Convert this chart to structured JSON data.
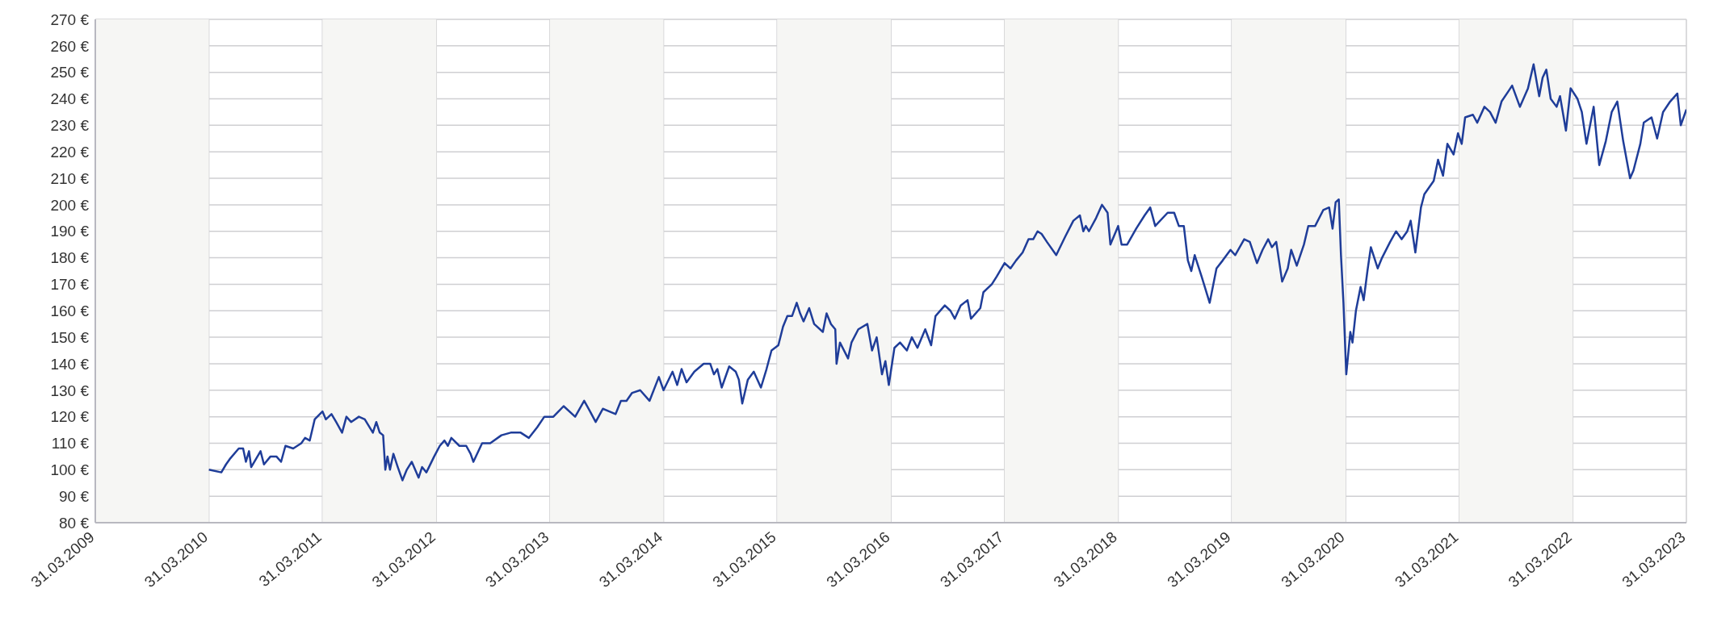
{
  "chart_data": {
    "type": "line",
    "xlim": [
      "2009-03-31",
      "2023-03-31"
    ],
    "xticks": [
      {
        "value": "2009-03-31",
        "label": "31.03.2009"
      },
      {
        "value": "2010-03-31",
        "label": "31.03.2010"
      },
      {
        "value": "2011-03-31",
        "label": "31.03.2011"
      },
      {
        "value": "2012-03-31",
        "label": "31.03.2012"
      },
      {
        "value": "2013-03-31",
        "label": "31.03.2013"
      },
      {
        "value": "2014-03-31",
        "label": "31.03.2014"
      },
      {
        "value": "2015-03-31",
        "label": "31.03.2015"
      },
      {
        "value": "2016-03-31",
        "label": "31.03.2016"
      },
      {
        "value": "2017-03-31",
        "label": "31.03.2017"
      },
      {
        "value": "2018-03-31",
        "label": "31.03.2018"
      },
      {
        "value": "2019-03-31",
        "label": "31.03.2019"
      },
      {
        "value": "2020-03-31",
        "label": "31.03.2020"
      },
      {
        "value": "2021-03-31",
        "label": "31.03.2021"
      },
      {
        "value": "2022-03-31",
        "label": "31.03.2022"
      },
      {
        "value": "2023-03-31",
        "label": "31.03.2023"
      }
    ],
    "ylim": [
      80,
      270
    ],
    "yticks": [
      {
        "value": 80,
        "label": "80 €"
      },
      {
        "value": 90,
        "label": "90 €"
      },
      {
        "value": 100,
        "label": "100 €"
      },
      {
        "value": 110,
        "label": "110 €"
      },
      {
        "value": 120,
        "label": "120 €"
      },
      {
        "value": 130,
        "label": "130 €"
      },
      {
        "value": 140,
        "label": "140 €"
      },
      {
        "value": 150,
        "label": "150 €"
      },
      {
        "value": 160,
        "label": "160 €"
      },
      {
        "value": 170,
        "label": "170 €"
      },
      {
        "value": 180,
        "label": "180 €"
      },
      {
        "value": 190,
        "label": "190 €"
      },
      {
        "value": 200,
        "label": "200 €"
      },
      {
        "value": 210,
        "label": "210 €"
      },
      {
        "value": 220,
        "label": "220 €"
      },
      {
        "value": 230,
        "label": "230 €"
      },
      {
        "value": 240,
        "label": "240 €"
      },
      {
        "value": 250,
        "label": "250 €"
      },
      {
        "value": 260,
        "label": "260 €"
      },
      {
        "value": 270,
        "label": "270 €"
      }
    ],
    "grid": true,
    "legend": false,
    "bands": [
      {
        "axis": "x",
        "from": "2009-03-31",
        "to": "2010-03-31",
        "color": "#f6f6f4"
      },
      {
        "axis": "x",
        "from": "2011-03-31",
        "to": "2012-03-31",
        "color": "#f6f6f4"
      },
      {
        "axis": "x",
        "from": "2013-03-31",
        "to": "2014-03-31",
        "color": "#f6f6f4"
      },
      {
        "axis": "x",
        "from": "2015-03-31",
        "to": "2016-03-31",
        "color": "#f6f6f4"
      },
      {
        "axis": "x",
        "from": "2017-03-31",
        "to": "2018-03-31",
        "color": "#f6f6f4"
      },
      {
        "axis": "x",
        "from": "2019-03-31",
        "to": "2020-03-31",
        "color": "#f6f6f4"
      },
      {
        "axis": "x",
        "from": "2021-03-31",
        "to": "2022-03-31",
        "color": "#f6f6f4"
      }
    ],
    "series": [
      {
        "color": "#1f3d99",
        "line_style": "solid",
        "x": [
          "2010-03-31",
          "2010-05-10",
          "2010-05-25",
          "2010-06-06",
          "2010-07-05",
          "2010-07-19",
          "2010-07-28",
          "2010-08-07",
          "2010-08-14",
          "2010-09-13",
          "2010-09-24",
          "2010-10-15",
          "2010-11-03",
          "2010-11-18",
          "2010-12-02",
          "2010-12-27",
          "2011-01-22",
          "2011-02-03",
          "2011-02-18",
          "2011-03-06",
          "2011-03-31",
          "2011-04-11",
          "2011-04-29",
          "2011-05-14",
          "2011-06-02",
          "2011-06-16",
          "2011-07-01",
          "2011-07-26",
          "2011-08-14",
          "2011-09-09",
          "2011-09-20",
          "2011-10-01",
          "2011-10-12",
          "2011-10-19",
          "2011-10-26",
          "2011-11-03",
          "2011-11-14",
          "2011-11-28",
          "2011-12-13",
          "2011-12-27",
          "2012-01-12",
          "2012-02-03",
          "2012-02-14",
          "2012-02-28",
          "2012-03-24",
          "2012-04-11",
          "2012-04-26",
          "2012-05-07",
          "2012-05-18",
          "2012-06-13",
          "2012-07-05",
          "2012-07-19",
          "2012-07-28",
          "2012-08-25",
          "2012-09-20",
          "2012-10-26",
          "2012-11-25",
          "2012-12-27",
          "2013-01-22",
          "2013-02-18",
          "2013-03-13",
          "2013-04-11",
          "2013-05-14",
          "2013-06-20",
          "2013-07-19",
          "2013-08-07",
          "2013-08-25",
          "2013-09-17",
          "2013-10-08",
          "2013-10-28",
          "2013-11-14",
          "2013-12-02",
          "2013-12-20",
          "2014-01-15",
          "2014-02-14",
          "2014-03-16",
          "2014-03-31",
          "2014-04-29",
          "2014-05-14",
          "2014-05-28",
          "2014-06-13",
          "2014-07-08",
          "2014-08-07",
          "2014-08-28",
          "2014-09-09",
          "2014-09-20",
          "2014-10-04",
          "2014-10-28",
          "2014-11-18",
          "2014-11-28",
          "2014-12-09",
          "2014-12-27",
          "2015-01-15",
          "2015-02-07",
          "2015-02-25",
          "2015-03-13",
          "2015-04-04",
          "2015-04-19",
          "2015-05-03",
          "2015-05-18",
          "2015-06-02",
          "2015-06-13",
          "2015-06-24",
          "2015-07-12",
          "2015-07-28",
          "2015-08-25",
          "2015-09-06",
          "2015-09-20",
          "2015-10-04",
          "2015-10-08",
          "2015-10-19",
          "2015-11-14",
          "2015-11-25",
          "2015-12-17",
          "2016-01-15",
          "2016-01-30",
          "2016-02-14",
          "2016-03-02",
          "2016-03-13",
          "2016-03-24",
          "2016-04-11",
          "2016-04-29",
          "2016-05-21",
          "2016-06-06",
          "2016-06-24",
          "2016-07-19",
          "2016-08-07",
          "2016-08-21",
          "2016-09-20",
          "2016-10-08",
          "2016-10-22",
          "2016-11-10",
          "2016-12-02",
          "2016-12-13",
          "2017-01-12",
          "2017-01-22",
          "2017-02-18",
          "2017-03-06",
          "2017-03-31",
          "2017-04-19",
          "2017-05-07",
          "2017-05-28",
          "2017-06-16",
          "2017-07-01",
          "2017-07-15",
          "2017-07-28",
          "2017-08-14",
          "2017-09-13",
          "2017-10-12",
          "2017-11-07",
          "2017-11-28",
          "2017-12-09",
          "2017-12-17",
          "2017-12-27",
          "2018-01-19",
          "2018-02-07",
          "2018-02-25",
          "2018-03-06",
          "2018-03-31",
          "2018-04-11",
          "2018-04-29",
          "2018-05-28",
          "2018-06-24",
          "2018-07-12",
          "2018-07-28",
          "2018-09-06",
          "2018-09-27",
          "2018-10-12",
          "2018-10-28",
          "2018-11-10",
          "2018-11-21",
          "2018-12-02",
          "2018-12-24",
          "2019-01-19",
          "2019-02-10",
          "2019-03-02",
          "2019-03-27",
          "2019-04-11",
          "2019-05-10",
          "2019-05-28",
          "2019-06-20",
          "2019-07-08",
          "2019-07-26",
          "2019-08-07",
          "2019-08-21",
          "2019-09-09",
          "2019-09-27",
          "2019-10-08",
          "2019-10-26",
          "2019-11-18",
          "2019-12-02",
          "2019-12-24",
          "2020-01-19",
          "2020-02-07",
          "2020-02-18",
          "2020-02-28",
          "2020-03-09",
          "2020-03-16",
          "2020-03-24",
          "2020-04-02",
          "2020-04-15",
          "2020-04-22",
          "2020-05-03",
          "2020-05-18",
          "2020-05-28",
          "2020-06-09",
          "2020-06-20",
          "2020-07-12",
          "2020-07-26",
          "2020-08-21",
          "2020-09-09",
          "2020-09-27",
          "2020-10-15",
          "2020-10-26",
          "2020-11-10",
          "2020-11-28",
          "2020-12-09",
          "2021-01-08",
          "2021-01-22",
          "2021-02-07",
          "2021-02-21",
          "2021-03-13",
          "2021-03-27",
          "2021-04-08",
          "2021-04-19",
          "2021-05-14",
          "2021-05-28",
          "2021-06-20",
          "2021-07-08",
          "2021-07-26",
          "2021-08-14",
          "2021-09-06",
          "2021-09-17",
          "2021-10-12",
          "2021-11-07",
          "2021-11-25",
          "2021-12-13",
          "2021-12-24",
          "2022-01-05",
          "2022-01-19",
          "2022-02-07",
          "2022-02-18",
          "2022-03-09",
          "2022-03-24",
          "2022-04-15",
          "2022-04-29",
          "2022-05-14",
          "2022-06-06",
          "2022-06-24",
          "2022-07-15",
          "2022-08-03",
          "2022-08-21",
          "2022-09-09",
          "2022-10-01",
          "2022-10-12",
          "2022-11-03",
          "2022-11-14",
          "2022-12-09",
          "2022-12-27",
          "2023-01-15",
          "2023-02-07",
          "2023-03-02",
          "2023-03-13",
          "2023-03-31"
        ],
        "values": [
          100,
          99,
          102,
          104,
          108,
          108,
          103,
          107,
          101,
          107,
          102,
          105,
          105,
          103,
          109,
          108,
          110,
          112,
          111,
          119,
          122,
          119,
          121,
          118,
          114,
          120,
          118,
          120,
          119,
          114,
          118,
          114,
          113,
          100,
          105,
          100,
          106,
          101,
          96,
          100,
          103,
          97,
          101,
          99,
          105,
          109,
          111,
          109,
          112,
          109,
          109,
          106,
          103,
          110,
          110,
          113,
          114,
          114,
          112,
          116,
          120,
          120,
          124,
          120,
          126,
          122,
          118,
          123,
          122,
          121,
          126,
          126,
          129,
          130,
          126,
          135,
          130,
          137,
          132,
          138,
          133,
          137,
          140,
          140,
          136,
          138,
          131,
          139,
          137,
          134,
          125,
          134,
          137,
          131,
          138,
          145,
          147,
          154,
          158,
          158,
          163,
          159,
          156,
          161,
          155,
          152,
          159,
          155,
          153,
          140,
          148,
          142,
          148,
          153,
          155,
          145,
          150,
          136,
          141,
          132,
          146,
          148,
          145,
          150,
          146,
          153,
          147,
          158,
          162,
          160,
          157,
          162,
          164,
          157,
          161,
          167,
          170,
          173,
          178,
          176,
          179,
          182,
          187,
          187,
          190,
          189,
          186,
          181,
          188,
          194,
          196,
          190,
          192,
          190,
          195,
          200,
          197,
          185,
          192,
          185,
          185,
          191,
          196,
          199,
          192,
          197,
          197,
          192,
          192,
          179,
          175,
          181,
          173,
          163,
          176,
          179,
          183,
          181,
          187,
          186,
          178,
          183,
          187,
          184,
          186,
          171,
          176,
          183,
          177,
          185,
          192,
          192,
          198,
          199,
          191,
          201,
          202,
          181,
          163,
          136,
          152,
          148,
          160,
          169,
          164,
          175,
          184,
          176,
          180,
          186,
          190,
          187,
          190,
          194,
          182,
          199,
          204,
          209,
          217,
          211,
          223,
          219,
          227,
          223,
          233,
          234,
          231,
          237,
          235,
          231,
          239,
          243,
          245,
          237,
          244,
          253,
          241,
          248,
          251,
          240,
          237,
          241,
          228,
          244,
          240,
          235,
          223,
          237,
          215,
          224,
          235,
          239,
          224,
          210,
          213,
          223,
          231,
          233,
          225,
          235,
          239,
          242,
          230,
          236
        ]
      }
    ]
  }
}
